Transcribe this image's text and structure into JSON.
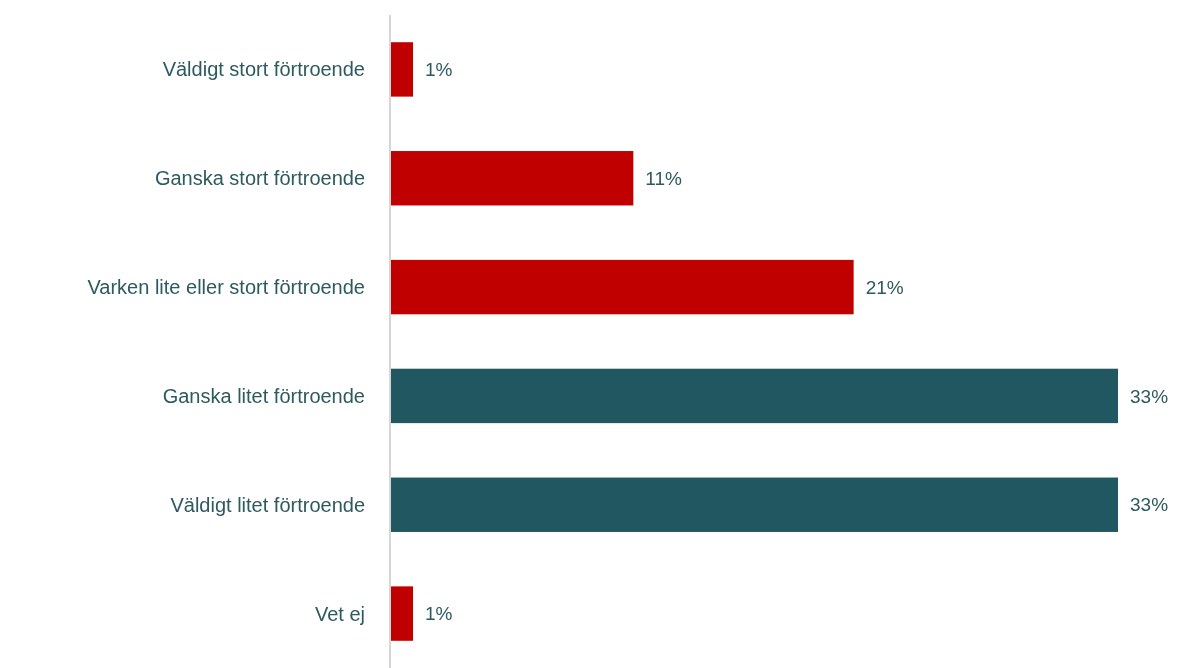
{
  "chart_data": {
    "type": "bar",
    "orientation": "horizontal",
    "categories": [
      "Väldigt stort förtroende",
      "Ganska stort förtroende",
      "Varken lite eller stort förtroende",
      "Ganska litet förtroende",
      "Väldigt litet förtroende",
      "Vet ej"
    ],
    "values": [
      1,
      11,
      21,
      33,
      33,
      1
    ],
    "colors": [
      "#c00000",
      "#c00000",
      "#c00000",
      "#215761",
      "#215761",
      "#c00000"
    ],
    "value_labels": [
      "1%",
      "11%",
      "21%",
      "33%",
      "33%",
      "1%"
    ]
  }
}
